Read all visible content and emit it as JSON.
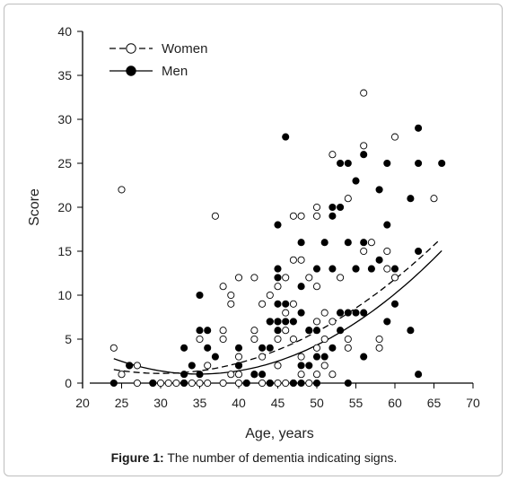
{
  "chart_data": {
    "type": "scatter",
    "xlabel": "Age, years",
    "ylabel": "Score",
    "xlim": [
      20,
      70
    ],
    "ylim": [
      0,
      40
    ],
    "xticks": [
      20,
      25,
      30,
      35,
      40,
      45,
      50,
      55,
      60,
      65,
      70
    ],
    "yticks": [
      0,
      5,
      10,
      15,
      20,
      25,
      30,
      35,
      40
    ],
    "grid": false,
    "legend_position": "top-left",
    "series": [
      {
        "name": "Women",
        "marker": "open-circle",
        "line_style": "dashed",
        "color": "#000000",
        "trend": {
          "x_range": [
            24,
            65.5
          ],
          "coef": [
            11.9,
            -0.7184,
            0.01195
          ]
        },
        "points": [
          [
            24,
            4
          ],
          [
            25,
            22
          ],
          [
            25,
            1
          ],
          [
            26,
            2
          ],
          [
            27,
            2
          ],
          [
            27,
            0
          ],
          [
            29,
            0
          ],
          [
            30,
            0
          ],
          [
            31,
            0
          ],
          [
            32,
            0
          ],
          [
            33,
            0
          ],
          [
            34,
            0
          ],
          [
            35,
            5
          ],
          [
            35,
            0
          ],
          [
            36,
            2
          ],
          [
            36,
            0
          ],
          [
            37,
            19
          ],
          [
            38,
            11
          ],
          [
            38,
            6
          ],
          [
            38,
            5
          ],
          [
            38,
            0
          ],
          [
            39,
            10
          ],
          [
            39,
            9
          ],
          [
            39,
            1
          ],
          [
            40,
            12
          ],
          [
            40,
            3
          ],
          [
            40,
            2
          ],
          [
            40,
            1
          ],
          [
            40,
            0
          ],
          [
            41,
            0
          ],
          [
            42,
            12
          ],
          [
            42,
            6
          ],
          [
            42,
            5
          ],
          [
            42,
            1
          ],
          [
            43,
            9
          ],
          [
            43,
            3
          ],
          [
            43,
            0
          ],
          [
            44,
            10
          ],
          [
            44,
            7
          ],
          [
            44,
            0
          ],
          [
            45,
            11
          ],
          [
            45,
            7
          ],
          [
            45,
            5
          ],
          [
            45,
            2
          ],
          [
            45,
            0
          ],
          [
            46,
            12
          ],
          [
            46,
            8
          ],
          [
            46,
            6
          ],
          [
            46,
            0
          ],
          [
            47,
            19
          ],
          [
            47,
            14
          ],
          [
            47,
            9
          ],
          [
            47,
            5
          ],
          [
            47,
            0
          ],
          [
            48,
            19
          ],
          [
            48,
            14
          ],
          [
            48,
            3
          ],
          [
            48,
            1
          ],
          [
            49,
            12
          ],
          [
            49,
            6
          ],
          [
            49,
            0
          ],
          [
            50,
            20
          ],
          [
            50,
            19
          ],
          [
            50,
            11
          ],
          [
            50,
            7
          ],
          [
            50,
            4
          ],
          [
            50,
            1
          ],
          [
            51,
            8
          ],
          [
            51,
            5
          ],
          [
            51,
            2
          ],
          [
            52,
            26
          ],
          [
            52,
            7
          ],
          [
            52,
            1
          ],
          [
            53,
            12
          ],
          [
            53,
            8
          ],
          [
            54,
            21
          ],
          [
            54,
            5
          ],
          [
            54,
            4
          ],
          [
            55,
            13
          ],
          [
            56,
            33
          ],
          [
            56,
            27
          ],
          [
            56,
            15
          ],
          [
            57,
            16
          ],
          [
            58,
            5
          ],
          [
            58,
            4
          ],
          [
            59,
            15
          ],
          [
            59,
            13
          ],
          [
            60,
            28
          ],
          [
            60,
            12
          ],
          [
            65,
            21
          ]
        ]
      },
      {
        "name": "Men",
        "marker": "filled-circle",
        "line_style": "solid",
        "color": "#000000",
        "trend": {
          "x_range": [
            24,
            66
          ],
          "coef": [
            18.8,
            -1.017,
            0.01455
          ]
        },
        "points": [
          [
            24,
            0
          ],
          [
            26,
            2
          ],
          [
            29,
            0
          ],
          [
            33,
            4
          ],
          [
            33,
            1
          ],
          [
            33,
            0
          ],
          [
            34,
            2
          ],
          [
            35,
            10
          ],
          [
            35,
            6
          ],
          [
            35,
            1
          ],
          [
            36,
            6
          ],
          [
            36,
            4
          ],
          [
            37,
            3
          ],
          [
            40,
            4
          ],
          [
            40,
            2
          ],
          [
            41,
            0
          ],
          [
            42,
            1
          ],
          [
            43,
            4
          ],
          [
            43,
            1
          ],
          [
            44,
            7
          ],
          [
            44,
            4
          ],
          [
            44,
            0
          ],
          [
            45,
            18
          ],
          [
            45,
            13
          ],
          [
            45,
            12
          ],
          [
            45,
            9
          ],
          [
            45,
            7
          ],
          [
            45,
            6
          ],
          [
            46,
            28
          ],
          [
            46,
            9
          ],
          [
            46,
            7
          ],
          [
            47,
            7
          ],
          [
            47,
            0
          ],
          [
            48,
            16
          ],
          [
            48,
            11
          ],
          [
            48,
            8
          ],
          [
            48,
            2
          ],
          [
            48,
            0
          ],
          [
            49,
            6
          ],
          [
            49,
            2
          ],
          [
            50,
            13
          ],
          [
            50,
            6
          ],
          [
            50,
            3
          ],
          [
            50,
            0
          ],
          [
            51,
            16
          ],
          [
            51,
            3
          ],
          [
            52,
            20
          ],
          [
            52,
            19
          ],
          [
            52,
            13
          ],
          [
            52,
            4
          ],
          [
            53,
            20
          ],
          [
            53,
            8
          ],
          [
            53,
            6
          ],
          [
            53,
            25
          ],
          [
            54,
            25
          ],
          [
            54,
            16
          ],
          [
            54,
            8
          ],
          [
            54,
            0
          ],
          [
            55,
            23
          ],
          [
            55,
            13
          ],
          [
            55,
            8
          ],
          [
            56,
            26
          ],
          [
            56,
            16
          ],
          [
            56,
            8
          ],
          [
            56,
            3
          ],
          [
            57,
            13
          ],
          [
            58,
            22
          ],
          [
            58,
            14
          ],
          [
            59,
            25
          ],
          [
            59,
            18
          ],
          [
            59,
            7
          ],
          [
            60,
            13
          ],
          [
            60,
            9
          ],
          [
            62,
            21
          ],
          [
            62,
            6
          ],
          [
            63,
            29
          ],
          [
            63,
            25
          ],
          [
            63,
            15
          ],
          [
            63,
            1
          ],
          [
            66,
            25
          ]
        ]
      }
    ]
  },
  "caption": {
    "label": "Figure 1:",
    "text": " The number of dementia indicating signs."
  }
}
